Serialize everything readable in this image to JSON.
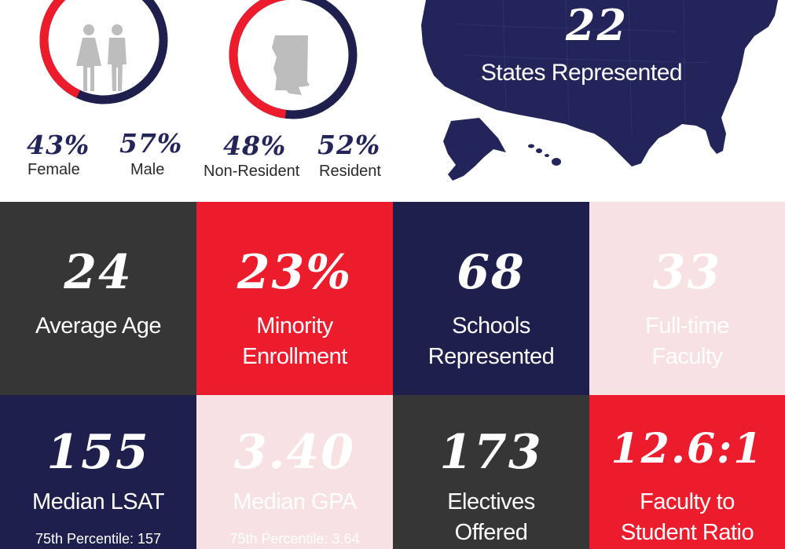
{
  "colors": {
    "navy": "#1e1f4d",
    "red": "#ec1c2d",
    "dark": "#363636",
    "pink": "#f7e1e2"
  },
  "gender": {
    "female_pct": "43%",
    "male_pct": "57%",
    "female_label": "Female",
    "male_label": "Male",
    "female_fraction": 0.43,
    "icon": "female-male-figures-icon"
  },
  "residency": {
    "nonresident_pct": "48%",
    "resident_pct": "52%",
    "nonresident_label": "Non-Resident",
    "resident_label": "Resident",
    "nonresident_fraction": 0.48,
    "icon": "mississippi-state-icon"
  },
  "states": {
    "number": "22",
    "label": "States Represented",
    "icon": "usa-map-icon"
  },
  "tiles": [
    {
      "number": "24",
      "line1": "Average Age",
      "line2": ""
    },
    {
      "number": "23%",
      "line1": "Minority",
      "line2": "Enrollment"
    },
    {
      "number": "68",
      "line1": "Schools",
      "line2": "Represented"
    },
    {
      "number": "33",
      "line1": "Full-time",
      "line2": "Faculty"
    },
    {
      "number": "155",
      "line1": "Median LSAT",
      "line2": "",
      "sub": "75th Percentile: 157"
    },
    {
      "number": "3.40",
      "line1": "Median GPA",
      "line2": "",
      "sub": "75th Percentile: 3.64"
    },
    {
      "number": "173",
      "line1": "Electives",
      "line2": "Offered"
    },
    {
      "number": "12.6:1",
      "line1": "Faculty to",
      "line2": "Student Ratio"
    }
  ]
}
